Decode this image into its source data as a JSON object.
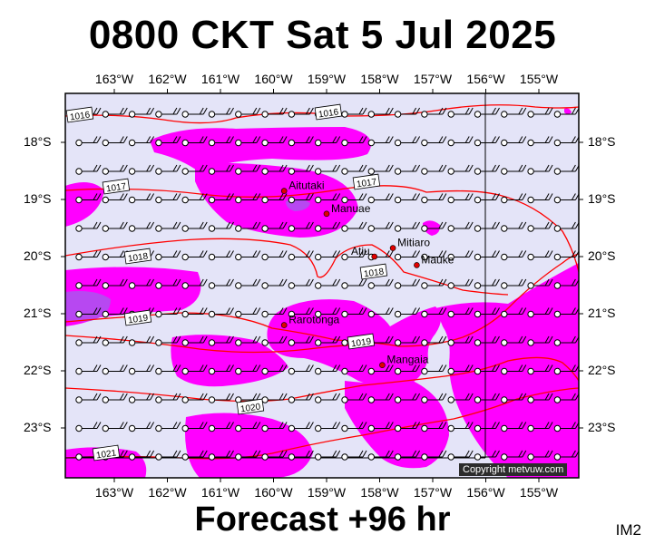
{
  "title": "0800 CKT Sat 5 Jul 2025",
  "footer": "Forecast +96 hr",
  "map_id": "IM2",
  "copyright": "Copyright metvuw.com",
  "lon_labels": [
    "163°W",
    "162°W",
    "161°W",
    "160°W",
    "159°W",
    "158°W",
    "157°W",
    "156°W",
    "155°W"
  ],
  "lat_labels": [
    "18°S",
    "19°S",
    "20°S",
    "21°S",
    "22°S",
    "23°S"
  ],
  "islands": [
    {
      "name": "Aitutaki",
      "lon": -159.8,
      "lat": -18.85
    },
    {
      "name": "Manuae",
      "lon": -159.0,
      "lat": -19.25
    },
    {
      "name": "Mitiaro",
      "lon": -157.75,
      "lat": -19.85
    },
    {
      "name": "Atiu",
      "lon": -158.1,
      "lat": -20.0
    },
    {
      "name": "Mauke",
      "lon": -157.3,
      "lat": -20.15
    },
    {
      "name": "Rarotonga",
      "lon": -159.8,
      "lat": -21.2
    },
    {
      "name": "Mangaia",
      "lon": -157.95,
      "lat": -21.9
    }
  ],
  "isobar_labels": [
    "1016",
    "1016",
    "1017",
    "1017",
    "1018",
    "1018",
    "1019",
    "1019",
    "1020",
    "1021"
  ],
  "colors": {
    "background": "#e4e4f8",
    "rain_light": "#ff00ff",
    "rain_heavy": "#aa55ee",
    "isobar": "#ff0000"
  }
}
